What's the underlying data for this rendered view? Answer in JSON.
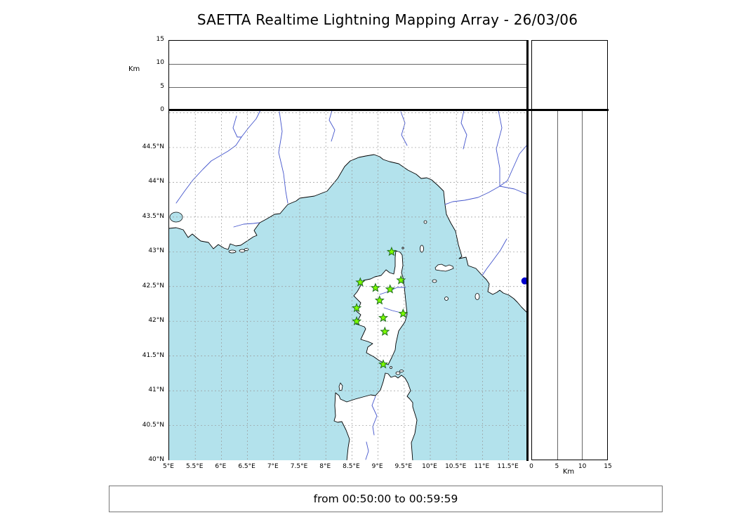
{
  "title": "SAETTA Realtime Lightning Mapping Array - 26/03/06",
  "footer": {
    "text": "from 00:50:00 to 00:59:59"
  },
  "colors": {
    "sea": "#b3e2ec",
    "land": "#ffffff",
    "coast": "#000000",
    "river": "#4455cc",
    "grid": "#999999",
    "star_fill": "#7cfc00",
    "star_stroke": "#1f6f1f",
    "dot": "#0000cd"
  },
  "axes": {
    "km_label": "Km",
    "lat": {
      "labels": [
        "44.5°N",
        "44°N",
        "43.5°N",
        "43°N",
        "42.5°N",
        "42°N",
        "41.5°N",
        "41°N",
        "40.5°N",
        "40°N"
      ],
      "values": [
        44.5,
        44.0,
        43.5,
        43.0,
        42.5,
        42.0,
        41.5,
        41.0,
        40.5,
        40.0
      ]
    },
    "lon": {
      "labels": [
        "5°E",
        "5.5°E",
        "6°E",
        "6.5°E",
        "7°E",
        "7.5°E",
        "8°E",
        "8.5°E",
        "9°E",
        "9.5°E",
        "10°E",
        "10.5°E",
        "11°E",
        "11.5°E"
      ],
      "values": [
        5.0,
        5.5,
        6.0,
        6.5,
        7.0,
        7.5,
        8.0,
        8.5,
        9.0,
        9.5,
        10.0,
        10.5,
        11.0,
        11.5
      ]
    },
    "alt_top": {
      "labels": [
        "15",
        "10",
        "5",
        "0"
      ],
      "values": [
        15,
        10,
        5,
        0
      ],
      "unit": "Km"
    },
    "alt_right": {
      "labels": [
        "0",
        "5",
        "10",
        "15"
      ],
      "values": [
        0,
        5,
        10,
        15
      ],
      "unit": "Km"
    }
  },
  "chart_data": {
    "type": "scatter",
    "title": "SAETTA Realtime Lightning Mapping Array - 26/03/06",
    "time_window": "from 00:50:00 to 00:59:59",
    "map_extent": {
      "lon_min": 5.0,
      "lon_max": 11.87,
      "lat_min": 40.0,
      "lat_max": 45.03
    },
    "altitude_axis": {
      "unit": "Km",
      "min": 0,
      "max": 15,
      "ticks": [
        0,
        5,
        10,
        15
      ]
    },
    "grid": "dashed, 0.5 degree spacing, on",
    "legend": "none",
    "stations": [
      {
        "lon": 9.26,
        "lat": 43.0
      },
      {
        "lon": 8.66,
        "lat": 42.56
      },
      {
        "lon": 8.95,
        "lat": 42.48
      },
      {
        "lon": 9.23,
        "lat": 42.46
      },
      {
        "lon": 9.44,
        "lat": 42.59
      },
      {
        "lon": 9.03,
        "lat": 42.3
      },
      {
        "lon": 8.59,
        "lat": 42.19
      },
      {
        "lon": 9.48,
        "lat": 42.11
      },
      {
        "lon": 8.59,
        "lat": 42.0
      },
      {
        "lon": 9.1,
        "lat": 42.05
      },
      {
        "lon": 9.13,
        "lat": 41.85
      },
      {
        "lon": 9.1,
        "lat": 41.38
      }
    ],
    "events": [
      {
        "lon": 11.81,
        "lat": 42.58,
        "marker": "filled-circle"
      }
    ]
  }
}
